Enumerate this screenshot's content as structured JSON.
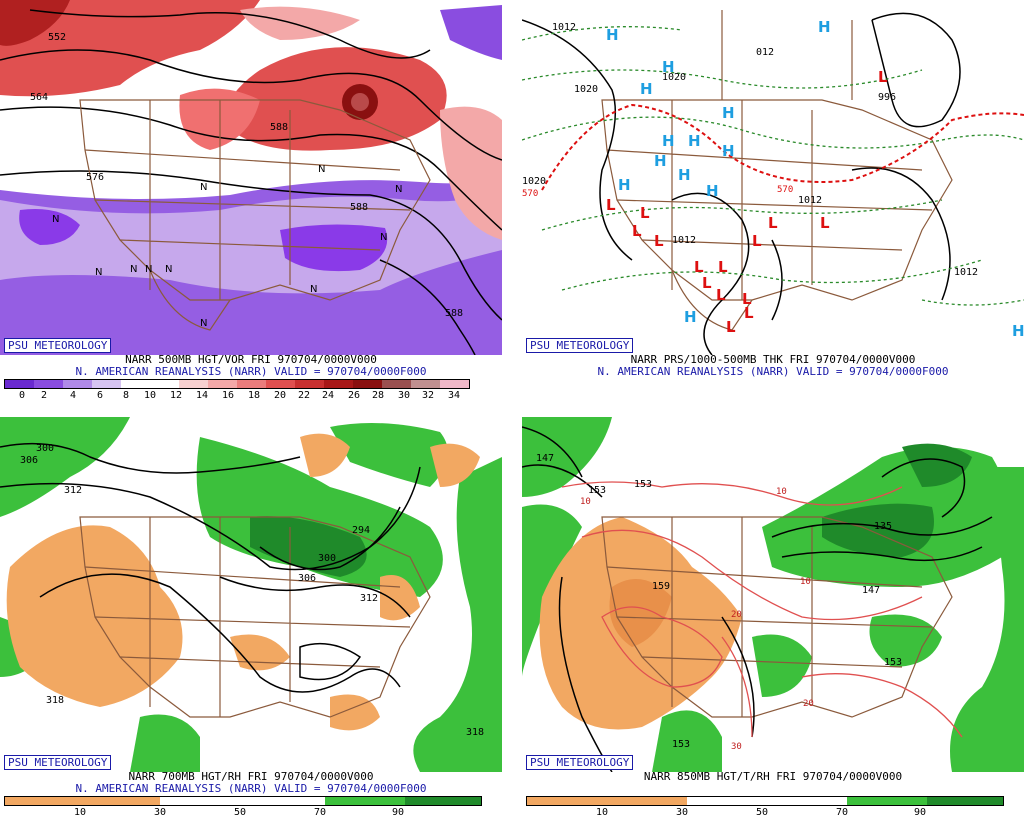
{
  "panels": [
    {
      "brand": "PSU METEOROLOGY",
      "title": "NARR 500MB HGT/VOR FRI 970704/0000V000",
      "subtitle": "N. AMERICAN REANALYSIS (NARR) VALID = 970704/0000F000",
      "scale_labels": [
        "0",
        "2",
        "4",
        "6",
        "8",
        "10",
        "12",
        "14",
        "16",
        "18",
        "20",
        "22",
        "24",
        "26",
        "28",
        "30",
        "32",
        "34"
      ],
      "contour_labels": [
        "552",
        "564",
        "576",
        "588",
        "588",
        "588"
      ],
      "center_marks": [
        "N",
        "N",
        "N",
        "N",
        "N",
        "N",
        "N",
        "N",
        "N",
        "N",
        "N"
      ]
    },
    {
      "brand": "PSU METEOROLOGY",
      "title": "NARR PRS/1000-500MB THK FRI 970704/0000V000",
      "subtitle": "N. AMERICAN REANALYSIS (NARR) VALID = 970704/0000F000",
      "contour_labels": [
        "1012",
        "1020",
        "1020",
        "012",
        "996",
        "1012",
        "1012",
        "1012",
        "1020",
        "570",
        "570"
      ],
      "high_marks": [
        "H",
        "H",
        "H",
        "H",
        "H",
        "H",
        "H",
        "H",
        "H",
        "H",
        "H",
        "H",
        "H",
        "H"
      ],
      "low_marks": [
        "L",
        "L",
        "L",
        "L",
        "L",
        "L",
        "L",
        "L",
        "L",
        "L",
        "L",
        "L",
        "L",
        "L",
        "L"
      ]
    },
    {
      "brand": "PSU METEOROLOGY",
      "title": "NARR 700MB HGT/RH FRI 970704/0000V000",
      "subtitle": "N. AMERICAN REANALYSIS (NARR) VALID = 970704/0000F000",
      "scale_labels": [
        "10",
        "30",
        "50",
        "70",
        "90"
      ],
      "contour_labels": [
        "300",
        "306",
        "312",
        "294",
        "300",
        "306",
        "312",
        "318",
        "318"
      ]
    },
    {
      "brand": "PSU METEOROLOGY",
      "title": "NARR 850MB HGT/T/RH FRI 970704/0000V000",
      "scale_labels": [
        "10",
        "30",
        "50",
        "70",
        "90"
      ],
      "contour_labels": [
        "147",
        "153",
        "153",
        "135",
        "147",
        "153",
        "159",
        "153"
      ],
      "temp_labels": [
        "10",
        "10",
        "10",
        "20",
        "20",
        "30",
        "20"
      ]
    }
  ],
  "colors": {
    "vort_purple": "#8a4de0",
    "vort_lav": "#c6a8ec",
    "vort_red": "#e05050",
    "vort_pink": "#f3a8a8",
    "vort_dark": "#8a1010",
    "rh_orange": "#f2a862",
    "rh_green": "#3cc03c",
    "rh_darkgreen": "#1f8a2a",
    "high_blue": "#1e9ee0",
    "low_red": "#dd1010",
    "border_brown": "#8b5a3c"
  }
}
